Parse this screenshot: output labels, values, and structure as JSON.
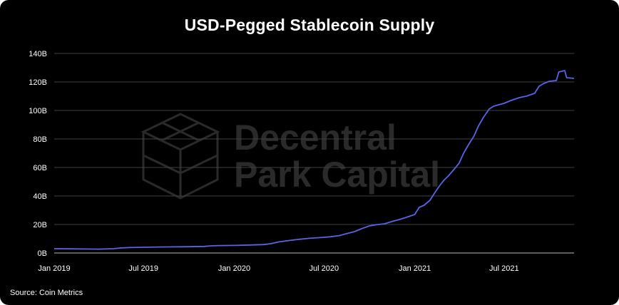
{
  "chart_data": {
    "type": "line",
    "title": "USD-Pegged Stablecoin Supply",
    "source": "Source: Coin Metrics",
    "watermark": {
      "line1": "Decentral",
      "line2": "Park Capital"
    },
    "y_unit_suffix": "B",
    "ylim": [
      0,
      140
    ],
    "yticks": [
      0,
      20,
      40,
      60,
      80,
      100,
      120,
      140
    ],
    "ytick_labels": [
      "0B",
      "20B",
      "40B",
      "60B",
      "80B",
      "100B",
      "120B",
      "140B"
    ],
    "xlim": [
      "2019-01-01",
      "2021-11-20"
    ],
    "xticks": [
      "2019-01-01",
      "2019-07-01",
      "2020-01-01",
      "2020-07-01",
      "2021-01-01",
      "2021-07-01"
    ],
    "xtick_labels": [
      "Jan 2019",
      "Jul 2019",
      "Jan 2020",
      "Jul 2020",
      "Jan 2021",
      "Jul 2021"
    ],
    "grid": "horizontal",
    "legend": "none",
    "line_color": "#5b63e6",
    "series": [
      {
        "points": [
          [
            "2019-01-01",
            3.0
          ],
          [
            "2019-02-01",
            2.9
          ],
          [
            "2019-03-01",
            2.8
          ],
          [
            "2019-04-01",
            2.7
          ],
          [
            "2019-05-01",
            3.0
          ],
          [
            "2019-05-15",
            3.5
          ],
          [
            "2019-06-01",
            3.8
          ],
          [
            "2019-07-01",
            4.0
          ],
          [
            "2019-08-01",
            4.2
          ],
          [
            "2019-09-01",
            4.3
          ],
          [
            "2019-10-01",
            4.4
          ],
          [
            "2019-11-01",
            4.6
          ],
          [
            "2019-11-15",
            5.0
          ],
          [
            "2019-12-01",
            5.2
          ],
          [
            "2020-01-01",
            5.3
          ],
          [
            "2020-02-01",
            5.6
          ],
          [
            "2020-03-01",
            5.9
          ],
          [
            "2020-03-15",
            6.5
          ],
          [
            "2020-04-01",
            7.8
          ],
          [
            "2020-05-01",
            9.2
          ],
          [
            "2020-06-01",
            10.3
          ],
          [
            "2020-07-01",
            11.0
          ],
          [
            "2020-07-15",
            11.4
          ],
          [
            "2020-08-01",
            12.2
          ],
          [
            "2020-08-15",
            13.5
          ],
          [
            "2020-09-01",
            15.0
          ],
          [
            "2020-09-15",
            17.0
          ],
          [
            "2020-10-01",
            19.0
          ],
          [
            "2020-10-15",
            19.8
          ],
          [
            "2020-11-01",
            20.5
          ],
          [
            "2020-11-15",
            22.0
          ],
          [
            "2020-12-01",
            23.5
          ],
          [
            "2020-12-15",
            25.0
          ],
          [
            "2021-01-01",
            27.0
          ],
          [
            "2021-01-10",
            32.0
          ],
          [
            "2021-01-20",
            33.5
          ],
          [
            "2021-02-01",
            37.0
          ],
          [
            "2021-02-10",
            42.0
          ],
          [
            "2021-02-20",
            47.0
          ],
          [
            "2021-03-01",
            51.0
          ],
          [
            "2021-03-10",
            54.0
          ],
          [
            "2021-03-20",
            58.0
          ],
          [
            "2021-04-01",
            63.0
          ],
          [
            "2021-04-10",
            70.0
          ],
          [
            "2021-04-20",
            76.0
          ],
          [
            "2021-05-01",
            82.0
          ],
          [
            "2021-05-10",
            89.0
          ],
          [
            "2021-05-20",
            95.0
          ],
          [
            "2021-06-01",
            101.0
          ],
          [
            "2021-06-10",
            103.0
          ],
          [
            "2021-06-20",
            104.0
          ],
          [
            "2021-07-01",
            105.0
          ],
          [
            "2021-07-15",
            107.0
          ],
          [
            "2021-08-01",
            109.0
          ],
          [
            "2021-08-15",
            110.0
          ],
          [
            "2021-09-01",
            112.0
          ],
          [
            "2021-09-10",
            117.0
          ],
          [
            "2021-09-20",
            119.0
          ],
          [
            "2021-10-01",
            120.5
          ],
          [
            "2021-10-15",
            121.0
          ],
          [
            "2021-10-20",
            127.0
          ],
          [
            "2021-11-01",
            128.0
          ],
          [
            "2021-11-05",
            123.0
          ],
          [
            "2021-11-20",
            122.5
          ]
        ]
      }
    ]
  }
}
